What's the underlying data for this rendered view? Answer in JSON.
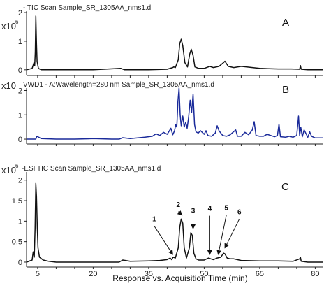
{
  "chart_data": [
    {
      "id": "A",
      "type": "line",
      "panel_label": "A",
      "title": "- TIC Scan Sample_SR_1305AA_nms1.d",
      "y_scale_prefix": "x10",
      "y_scale_exp": "6",
      "xlim": [
        2,
        82
      ],
      "ylim": [
        -0.2,
        2.05
      ],
      "yticks": [
        "0",
        "1",
        "2"
      ],
      "ytick_values": [
        0,
        1,
        2
      ],
      "color": "#111111",
      "series": [
        {
          "x": [
            2,
            3.5,
            4,
            4.2,
            4.35,
            4.5,
            4.7,
            4.85,
            5.2,
            6,
            10,
            15,
            20,
            27.5,
            28.5,
            35,
            40,
            41.5,
            41.8,
            42.2,
            43,
            43.4,
            43.8,
            44.2,
            44.8,
            45.5,
            46.1,
            46.5,
            47.0,
            47.5,
            48.5,
            50,
            51.5,
            52.5,
            54,
            55.2,
            55.6,
            56.5,
            58,
            60,
            65,
            70,
            73.5,
            75.8,
            76.0,
            76.2,
            78,
            82
          ],
          "y": [
            0.0,
            0.05,
            0.25,
            0.15,
            0.62,
            1.88,
            0.9,
            0.3,
            0.05,
            0.0,
            0.0,
            0.0,
            0.0,
            0.05,
            0.0,
            0.0,
            0.02,
            0.08,
            0.1,
            0.08,
            0.35,
            0.92,
            1.07,
            0.85,
            0.25,
            0.1,
            0.55,
            0.72,
            0.5,
            0.1,
            0.05,
            0.05,
            0.12,
            0.08,
            0.12,
            0.25,
            0.3,
            0.12,
            0.08,
            0.12,
            0.05,
            0.03,
            0.03,
            0.02,
            0.15,
            0.02,
            0.0,
            0.0
          ]
        }
      ]
    },
    {
      "id": "B",
      "type": "line",
      "panel_label": "B",
      "title": "VWD1 - A:Wavelength=280 nm Sample_SR_1305AA_nms1.d",
      "y_scale_prefix": "x10",
      "y_scale_exp": "",
      "xlim": [
        2,
        82
      ],
      "ylim": [
        -0.2,
        2.1
      ],
      "yticks": [
        "0",
        "1",
        "2"
      ],
      "ytick_values": [
        0,
        1,
        2
      ],
      "color": "#1a2a9a",
      "series": [
        {
          "x": [
            2,
            4.5,
            4.8,
            6,
            10,
            15,
            20,
            25,
            27,
            28,
            30,
            34,
            36,
            37,
            38,
            39,
            40,
            40.5,
            41,
            41.5,
            42,
            42.3,
            42.6,
            42.9,
            43.2,
            43.5,
            43.8,
            44.2,
            44.6,
            45,
            45.4,
            45.8,
            46.2,
            46.6,
            47,
            47.4,
            47.8,
            48.4,
            49,
            50,
            50.5,
            51,
            52,
            53,
            53.5,
            54,
            55,
            56,
            57,
            58.5,
            59,
            60,
            61,
            62,
            63,
            63.5,
            64,
            65,
            66,
            67,
            68,
            69,
            69.8,
            70.2,
            70.6,
            72,
            73,
            74,
            75,
            75.5,
            75.8,
            76.1,
            76.5,
            77,
            78,
            78.5,
            79,
            80,
            82
          ],
          "y": [
            0.0,
            0.0,
            0.12,
            0.02,
            0.0,
            0.0,
            0.02,
            0.0,
            0.0,
            0.06,
            0.02,
            0.08,
            0.12,
            0.22,
            0.15,
            0.28,
            0.2,
            0.32,
            0.45,
            0.18,
            0.35,
            0.6,
            0.5,
            1.55,
            2.1,
            1.0,
            0.55,
            0.95,
            0.5,
            0.7,
            0.45,
            0.9,
            1.6,
            1.1,
            1.85,
            0.6,
            0.3,
            0.25,
            0.35,
            0.2,
            0.35,
            0.15,
            0.12,
            0.25,
            0.55,
            0.35,
            0.15,
            0.12,
            0.18,
            0.38,
            0.12,
            0.12,
            0.28,
            0.18,
            0.38,
            0.72,
            0.15,
            0.12,
            0.12,
            0.2,
            0.15,
            0.1,
            0.15,
            0.62,
            0.1,
            0.08,
            0.12,
            0.08,
            0.15,
            0.95,
            0.15,
            0.5,
            0.1,
            0.38,
            0.08,
            0.3,
            0.12,
            0.05,
            0.05
          ]
        }
      ]
    },
    {
      "id": "C",
      "type": "line",
      "panel_label": "C",
      "title": "-ESI TIC Scan Sample_SR_1305AA_nms1.d",
      "y_scale_prefix": "x10",
      "y_scale_exp": "6",
      "xlim": [
        2,
        82
      ],
      "ylim": [
        -0.12,
        2.2
      ],
      "yticks": [
        "0",
        "0.5",
        "1",
        "1.5",
        "2"
      ],
      "ytick_values": [
        0,
        0.5,
        1,
        1.5,
        2
      ],
      "xticks": [
        "5",
        "20",
        "35",
        "50",
        "65",
        "80"
      ],
      "xtick_values": [
        5,
        20,
        35,
        50,
        65,
        80
      ],
      "xlabel": "Response vs. Acquisition Time (min)",
      "color": "#111111",
      "series": [
        {
          "x": [
            2,
            3.5,
            3.8,
            4.1,
            4.3,
            4.5,
            4.7,
            4.9,
            5.1,
            5.5,
            6.5,
            8,
            10,
            15,
            20,
            27,
            28,
            30,
            35,
            38,
            40,
            40.8,
            41.2,
            41.6,
            42.2,
            43,
            43.4,
            43.8,
            44.2,
            44.6,
            45.2,
            46,
            46.4,
            46.8,
            47.2,
            47.8,
            48.5,
            50,
            51.2,
            51.8,
            52.5,
            53.5,
            54.5,
            55.2,
            55.6,
            56.2,
            57,
            58,
            60,
            65,
            70,
            74,
            75.8,
            76.0,
            76.2,
            78,
            82
          ],
          "y": [
            0.0,
            0.05,
            0.25,
            0.12,
            0.8,
            1.92,
            1.6,
            0.85,
            0.35,
            0.12,
            0.05,
            0.02,
            0.0,
            0.0,
            0.0,
            0.0,
            0.05,
            0.02,
            0.03,
            0.04,
            0.06,
            0.1,
            0.06,
            0.12,
            0.1,
            0.35,
            0.85,
            1.05,
            0.95,
            0.35,
            0.1,
            0.35,
            0.72,
            0.65,
            0.22,
            0.08,
            0.05,
            0.05,
            0.1,
            0.08,
            0.06,
            0.1,
            0.12,
            0.22,
            0.2,
            0.1,
            0.08,
            0.08,
            0.04,
            0.03,
            0.03,
            0.02,
            0.08,
            0.12,
            0.02,
            0.0,
            0.0
          ]
        }
      ],
      "annotations": [
        {
          "label": "1",
          "x": 41.5,
          "y": 0.12,
          "text_x": 36.5,
          "text_y": 0.95
        },
        {
          "label": "2",
          "x": 44.0,
          "y": 1.08,
          "text_x": 43.0,
          "text_y": 1.3
        },
        {
          "label": "3",
          "x": 47.0,
          "y": 0.75,
          "text_x": 47.0,
          "text_y": 1.15
        },
        {
          "label": "4",
          "x": 51.5,
          "y": 0.12,
          "text_x": 51.5,
          "text_y": 1.2
        },
        {
          "label": "5",
          "x": 53.8,
          "y": 0.12,
          "text_x": 56.0,
          "text_y": 1.22
        },
        {
          "label": "6",
          "x": 55.6,
          "y": 0.28,
          "text_x": 59.5,
          "text_y": 1.12
        }
      ]
    }
  ]
}
